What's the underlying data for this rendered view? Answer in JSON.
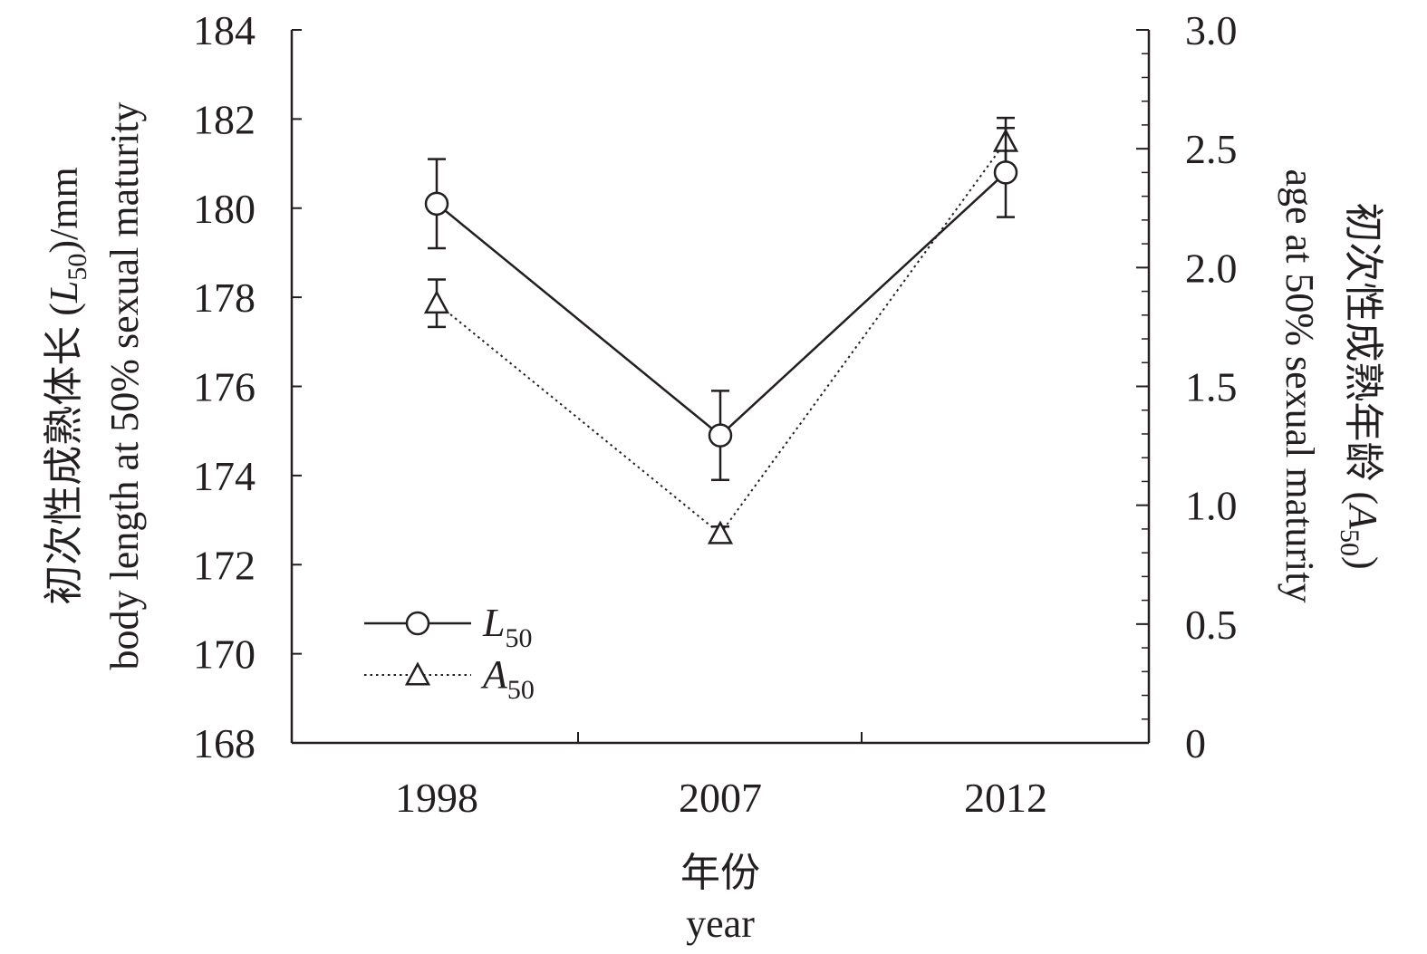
{
  "chart_data": {
    "type": "line",
    "categories": [
      "1998",
      "2007",
      "2012"
    ],
    "xlabel": [
      "年份",
      "year"
    ],
    "y_left": {
      "label_lines": [
        "初次性成熟体长 (L50)/mm",
        "body length at 50% sexual maturity"
      ],
      "label_line1_parts": {
        "prefix": "初次性成熟体长 (",
        "var": "L",
        "sub": "50",
        "suffix": ")/mm"
      },
      "ylim": [
        168,
        184
      ],
      "ticks": [
        168,
        170,
        172,
        174,
        176,
        178,
        180,
        182,
        184
      ],
      "tick_labels": [
        "168",
        "170",
        "172",
        "174",
        "176",
        "178",
        "180",
        "182",
        "184"
      ]
    },
    "y_right": {
      "label_lines": [
        "初次性成熟年龄 (A50)",
        "age at 50% sexual maturity"
      ],
      "label_line1_parts": {
        "prefix": "初次性成熟年龄 (",
        "var": "A",
        "sub": "50",
        "suffix": ")"
      },
      "ylim": [
        0,
        3.0
      ],
      "ticks": [
        0,
        0.5,
        1.0,
        1.5,
        2.0,
        2.5,
        3.0
      ],
      "tick_labels": [
        "0",
        "0.5",
        "1.0",
        "1.5",
        "2.0",
        "2.5",
        "3.0"
      ],
      "minor_step": 0.1
    },
    "series": [
      {
        "name": "L50",
        "name_parts": {
          "var": "L",
          "sub": "50"
        },
        "axis": "left",
        "marker": "circle",
        "line_style": "solid",
        "values": [
          180.1,
          174.9,
          180.8
        ],
        "error": [
          1.0,
          1.0,
          1.0
        ]
      },
      {
        "name": "A50",
        "name_parts": {
          "var": "A",
          "sub": "50"
        },
        "axis": "right",
        "marker": "triangle",
        "line_style": "dotted",
        "values": [
          1.85,
          0.88,
          2.53
        ],
        "error": [
          0.1,
          0.03,
          0.1
        ]
      }
    ],
    "legend_position": "bottom-left",
    "grid": false
  }
}
